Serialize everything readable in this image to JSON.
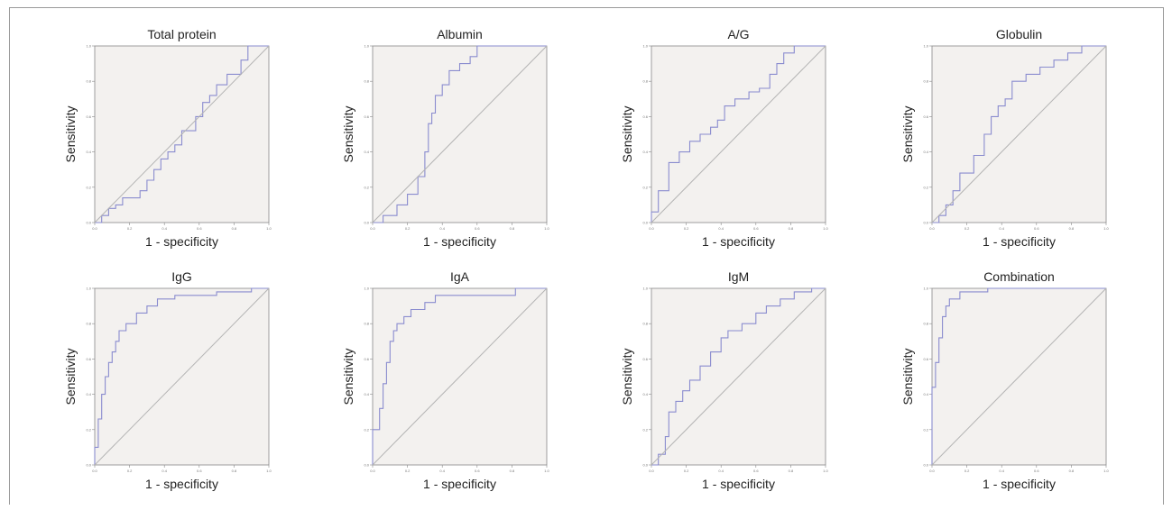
{
  "figure": {
    "colors": {
      "plot_bg": "#f3f1ef",
      "roc_line": "#8a8ccf",
      "diagonal": "#b4b4b4",
      "axis": "#888888",
      "text": "#222222"
    }
  },
  "chart_data": [
    {
      "type": "line",
      "title": "Total protein",
      "xlabel": "1 - specificity",
      "ylabel": "Sensitivity",
      "xlim": [
        0,
        1
      ],
      "ylim": [
        0,
        1
      ],
      "ticks": [
        "0.0",
        "0.2",
        "0.4",
        "0.6",
        "0.8",
        "1.0"
      ],
      "series": [
        {
          "x": [
            0,
            0.04,
            0.04,
            0.08,
            0.08,
            0.12,
            0.12,
            0.16,
            0.16,
            0.26,
            0.26,
            0.3,
            0.3,
            0.34,
            0.34,
            0.38,
            0.38,
            0.42,
            0.42,
            0.46,
            0.46,
            0.5,
            0.5,
            0.58,
            0.58,
            0.62,
            0.62,
            0.66,
            0.66,
            0.7,
            0.7,
            0.76,
            0.76,
            0.84,
            0.84,
            0.88,
            0.88,
            1.0
          ],
          "y": [
            0,
            0,
            0.04,
            0.04,
            0.08,
            0.08,
            0.1,
            0.1,
            0.14,
            0.14,
            0.18,
            0.18,
            0.24,
            0.24,
            0.3,
            0.3,
            0.36,
            0.36,
            0.4,
            0.4,
            0.44,
            0.44,
            0.52,
            0.52,
            0.6,
            0.6,
            0.68,
            0.68,
            0.72,
            0.72,
            0.78,
            0.78,
            0.84,
            0.84,
            0.92,
            0.92,
            1.0,
            1.0
          ]
        },
        {
          "x": [
            0,
            1
          ],
          "y": [
            0,
            1
          ]
        }
      ]
    },
    {
      "type": "line",
      "title": "Albumin",
      "xlabel": "1 - specificity",
      "ylabel": "Sensitivity",
      "xlim": [
        0,
        1
      ],
      "ylim": [
        0,
        1
      ],
      "ticks": [
        "0.0",
        "0.2",
        "0.4",
        "0.6",
        "0.8",
        "1.0"
      ],
      "series": [
        {
          "x": [
            0,
            0.06,
            0.06,
            0.14,
            0.14,
            0.2,
            0.2,
            0.26,
            0.26,
            0.3,
            0.3,
            0.32,
            0.32,
            0.34,
            0.34,
            0.36,
            0.36,
            0.4,
            0.4,
            0.44,
            0.44,
            0.5,
            0.5,
            0.56,
            0.56,
            0.6,
            0.6,
            1.0
          ],
          "y": [
            0,
            0,
            0.04,
            0.04,
            0.1,
            0.1,
            0.16,
            0.16,
            0.26,
            0.26,
            0.4,
            0.4,
            0.56,
            0.56,
            0.62,
            0.62,
            0.72,
            0.72,
            0.78,
            0.78,
            0.86,
            0.86,
            0.9,
            0.9,
            0.94,
            0.94,
            1.0,
            1.0
          ]
        },
        {
          "x": [
            0,
            1
          ],
          "y": [
            0,
            1
          ]
        }
      ]
    },
    {
      "type": "line",
      "title": "A/G",
      "xlabel": "1 - specificity",
      "ylabel": "Sensitivity",
      "xlim": [
        0,
        1
      ],
      "ylim": [
        0,
        1
      ],
      "ticks": [
        "0.0",
        "0.2",
        "0.4",
        "0.6",
        "0.8",
        "1.0"
      ],
      "series": [
        {
          "x": [
            0,
            0,
            0.04,
            0.04,
            0.1,
            0.1,
            0.16,
            0.16,
            0.22,
            0.22,
            0.28,
            0.28,
            0.34,
            0.34,
            0.38,
            0.38,
            0.42,
            0.42,
            0.48,
            0.48,
            0.56,
            0.56,
            0.62,
            0.62,
            0.68,
            0.68,
            0.72,
            0.72,
            0.76,
            0.76,
            0.82,
            0.82,
            1.0
          ],
          "y": [
            0,
            0.06,
            0.06,
            0.18,
            0.18,
            0.34,
            0.34,
            0.4,
            0.4,
            0.46,
            0.46,
            0.5,
            0.5,
            0.54,
            0.54,
            0.58,
            0.58,
            0.66,
            0.66,
            0.7,
            0.7,
            0.74,
            0.74,
            0.76,
            0.76,
            0.84,
            0.84,
            0.9,
            0.9,
            0.96,
            0.96,
            1.0,
            1.0
          ]
        },
        {
          "x": [
            0,
            1
          ],
          "y": [
            0,
            1
          ]
        }
      ]
    },
    {
      "type": "line",
      "title": "Globulin",
      "xlabel": "1 - specificity",
      "ylabel": "Sensitivity",
      "xlim": [
        0,
        1
      ],
      "ylim": [
        0,
        1
      ],
      "ticks": [
        "0.0",
        "0.2",
        "0.4",
        "0.6",
        "0.8",
        "1.0"
      ],
      "series": [
        {
          "x": [
            0,
            0.04,
            0.04,
            0.08,
            0.08,
            0.12,
            0.12,
            0.16,
            0.16,
            0.24,
            0.24,
            0.3,
            0.3,
            0.34,
            0.34,
            0.38,
            0.38,
            0.42,
            0.42,
            0.46,
            0.46,
            0.54,
            0.54,
            0.62,
            0.62,
            0.7,
            0.7,
            0.78,
            0.78,
            0.86,
            0.86,
            0.92,
            0.92,
            1.0
          ],
          "y": [
            0,
            0,
            0.04,
            0.04,
            0.1,
            0.1,
            0.18,
            0.18,
            0.28,
            0.28,
            0.38,
            0.38,
            0.5,
            0.5,
            0.6,
            0.6,
            0.66,
            0.66,
            0.7,
            0.7,
            0.8,
            0.8,
            0.84,
            0.84,
            0.88,
            0.88,
            0.92,
            0.92,
            0.96,
            0.96,
            1.0,
            1.0,
            1.0,
            1.0
          ]
        },
        {
          "x": [
            0,
            1
          ],
          "y": [
            0,
            1
          ]
        }
      ]
    },
    {
      "type": "line",
      "title": "IgG",
      "xlabel": "1 - specificity",
      "ylabel": "Sensitivity",
      "xlim": [
        0,
        1
      ],
      "ylim": [
        0,
        1
      ],
      "ticks": [
        "0.0",
        "0.2",
        "0.4",
        "0.6",
        "0.8",
        "1.0"
      ],
      "series": [
        {
          "x": [
            0,
            0,
            0.02,
            0.02,
            0.04,
            0.04,
            0.06,
            0.06,
            0.08,
            0.08,
            0.1,
            0.1,
            0.12,
            0.12,
            0.14,
            0.14,
            0.18,
            0.18,
            0.24,
            0.24,
            0.3,
            0.3,
            0.36,
            0.36,
            0.46,
            0.46,
            0.7,
            0.7,
            0.9,
            0.9,
            1.0
          ],
          "y": [
            0,
            0.1,
            0.1,
            0.26,
            0.26,
            0.4,
            0.4,
            0.5,
            0.5,
            0.58,
            0.58,
            0.64,
            0.64,
            0.7,
            0.7,
            0.76,
            0.76,
            0.8,
            0.8,
            0.86,
            0.86,
            0.9,
            0.9,
            0.94,
            0.94,
            0.96,
            0.96,
            0.98,
            0.98,
            1.0,
            1.0
          ]
        },
        {
          "x": [
            0,
            1
          ],
          "y": [
            0,
            1
          ]
        }
      ]
    },
    {
      "type": "line",
      "title": "IgA",
      "xlabel": "1 - specificity",
      "ylabel": "Sensitivity",
      "xlim": [
        0,
        1
      ],
      "ylim": [
        0,
        1
      ],
      "ticks": [
        "0.0",
        "0.2",
        "0.4",
        "0.6",
        "0.8",
        "1.0"
      ],
      "series": [
        {
          "x": [
            0,
            0,
            0.04,
            0.04,
            0.06,
            0.06,
            0.08,
            0.08,
            0.1,
            0.1,
            0.12,
            0.12,
            0.14,
            0.14,
            0.18,
            0.18,
            0.22,
            0.22,
            0.3,
            0.3,
            0.36,
            0.36,
            0.82,
            0.82,
            1.0
          ],
          "y": [
            0,
            0.2,
            0.2,
            0.32,
            0.32,
            0.46,
            0.46,
            0.58,
            0.58,
            0.7,
            0.7,
            0.76,
            0.76,
            0.8,
            0.8,
            0.84,
            0.84,
            0.88,
            0.88,
            0.92,
            0.92,
            0.96,
            0.96,
            1.0,
            1.0
          ]
        },
        {
          "x": [
            0,
            1
          ],
          "y": [
            0,
            1
          ]
        }
      ]
    },
    {
      "type": "line",
      "title": "IgM",
      "xlabel": "1 - specificity",
      "ylabel": "Sensitivity",
      "xlim": [
        0,
        1
      ],
      "ylim": [
        0,
        1
      ],
      "ticks": [
        "0.0",
        "0.2",
        "0.4",
        "0.6",
        "0.8",
        "1.0"
      ],
      "series": [
        {
          "x": [
            0,
            0.04,
            0.04,
            0.08,
            0.08,
            0.1,
            0.1,
            0.14,
            0.14,
            0.18,
            0.18,
            0.22,
            0.22,
            0.28,
            0.28,
            0.34,
            0.34,
            0.4,
            0.4,
            0.44,
            0.44,
            0.52,
            0.52,
            0.6,
            0.6,
            0.66,
            0.66,
            0.74,
            0.74,
            0.82,
            0.82,
            0.92,
            0.92,
            1.0
          ],
          "y": [
            0,
            0,
            0.06,
            0.06,
            0.16,
            0.16,
            0.3,
            0.3,
            0.36,
            0.36,
            0.42,
            0.42,
            0.48,
            0.48,
            0.56,
            0.56,
            0.64,
            0.64,
            0.72,
            0.72,
            0.76,
            0.76,
            0.8,
            0.8,
            0.86,
            0.86,
            0.9,
            0.9,
            0.94,
            0.94,
            0.98,
            0.98,
            1.0,
            1.0
          ]
        },
        {
          "x": [
            0,
            1
          ],
          "y": [
            0,
            1
          ]
        }
      ]
    },
    {
      "type": "line",
      "title": "Combination",
      "xlabel": "1 - specificity",
      "ylabel": "Sensitivity",
      "xlim": [
        0,
        1
      ],
      "ylim": [
        0,
        1
      ],
      "ticks": [
        "0.0",
        "0.2",
        "0.4",
        "0.6",
        "0.8",
        "1.0"
      ],
      "series": [
        {
          "x": [
            0,
            0,
            0.02,
            0.02,
            0.04,
            0.04,
            0.06,
            0.06,
            0.08,
            0.08,
            0.1,
            0.1,
            0.16,
            0.16,
            0.32,
            0.32,
            1.0
          ],
          "y": [
            0,
            0.44,
            0.44,
            0.58,
            0.58,
            0.72,
            0.72,
            0.84,
            0.84,
            0.9,
            0.9,
            0.94,
            0.94,
            0.98,
            0.98,
            1.0,
            1.0
          ]
        },
        {
          "x": [
            0,
            1
          ],
          "y": [
            0,
            1
          ]
        }
      ]
    }
  ]
}
